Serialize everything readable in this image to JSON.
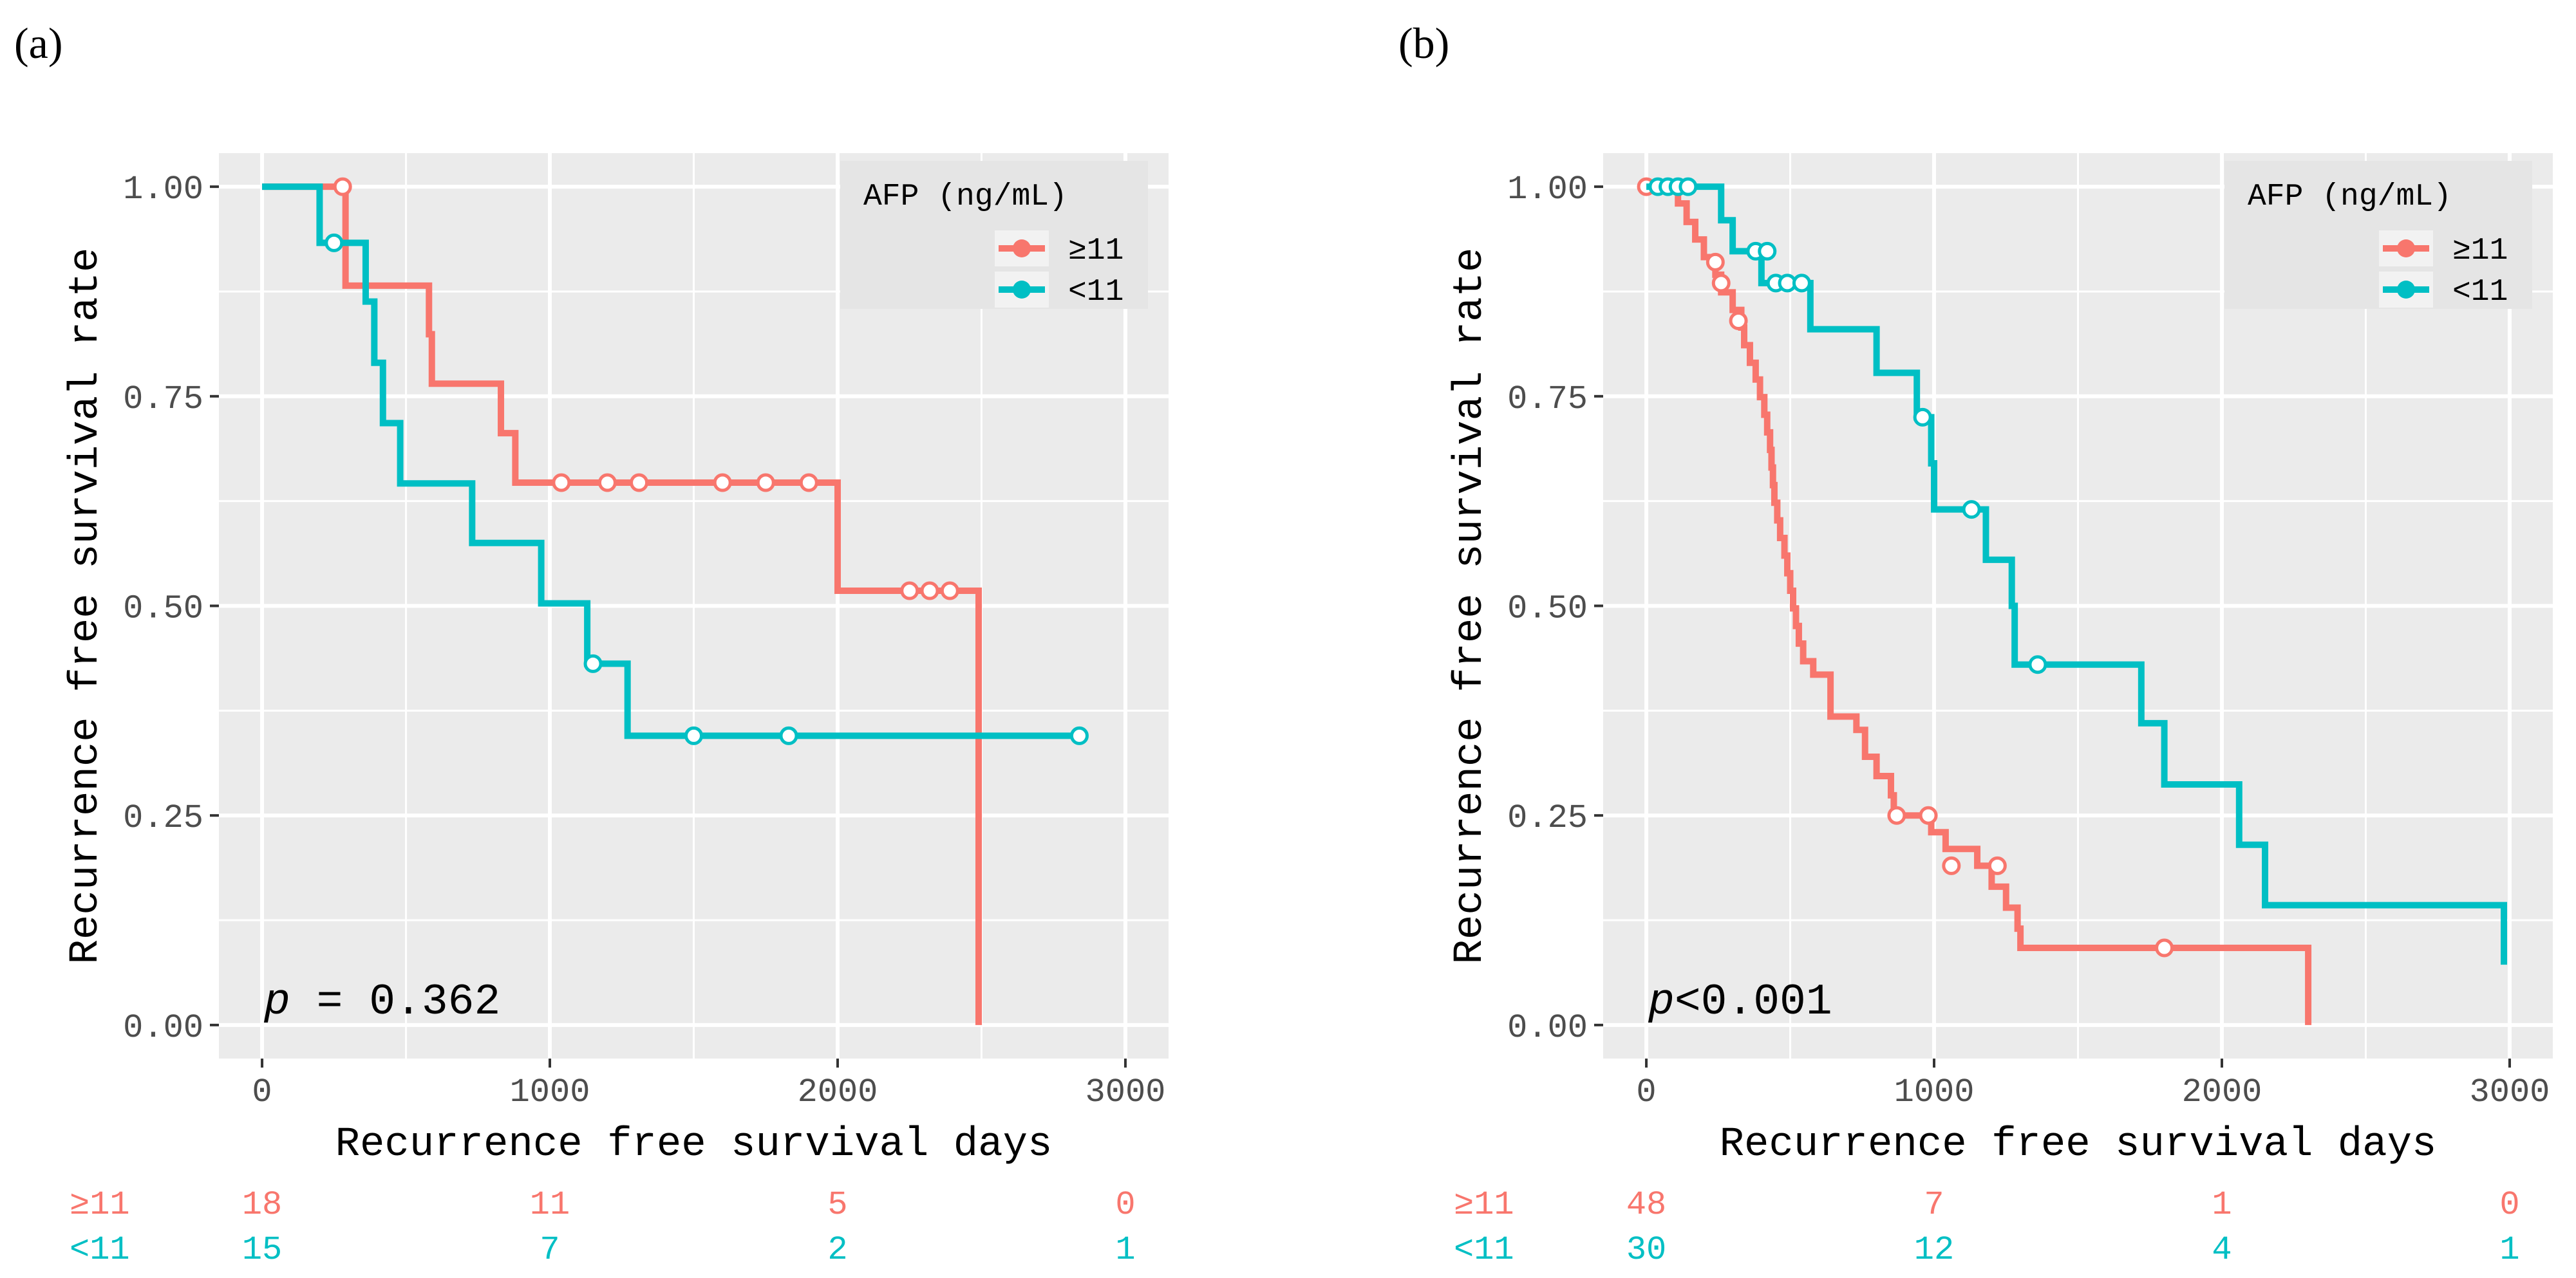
{
  "colors": {
    "high": "#f8766d",
    "low": "#00bfc4",
    "panel_bg": "#ebebeb",
    "grid": "#ffffff",
    "tick_text": "#4d4d4d",
    "tick_mark": "#333333"
  },
  "chart_data": [
    {
      "panel_label": "(a)",
      "type": "line",
      "subtype": "kaplan-meier step",
      "xlabel": "Recurrence free survival days",
      "ylabel": "Recurrence free survival rate",
      "xlim": [
        -150,
        3150
      ],
      "ylim": [
        -0.04,
        1.04
      ],
      "x_ticks": [
        0,
        1000,
        2000,
        3000
      ],
      "x_tick_labels": [
        "0",
        "1000",
        "2000",
        "3000"
      ],
      "y_ticks": [
        0,
        0.25,
        0.5,
        0.75,
        1.0
      ],
      "y_tick_labels": [
        "0.00",
        "0.25",
        "0.50",
        "0.75",
        "1.00"
      ],
      "legend_title": "AFP (ng/mL)",
      "legend_position": "top-right",
      "pvalue_prefix": "p",
      "pvalue_text": " = 0.362",
      "series": [
        {
          "name": "≥11",
          "color": "#f8766d",
          "steps": [
            [
              0,
              1.0
            ],
            [
              290,
              0.882
            ],
            [
              580,
              0.824
            ],
            [
              590,
              0.765
            ],
            [
              830,
              0.706
            ],
            [
              880,
              0.647
            ],
            [
              2000,
              0.518
            ],
            [
              2490,
              0.0
            ]
          ],
          "end_x": 2490,
          "censored": [
            [
              280,
              1.0
            ],
            [
              1040,
              0.647
            ],
            [
              1200,
              0.647
            ],
            [
              1310,
              0.647
            ],
            [
              1600,
              0.647
            ],
            [
              1750,
              0.647
            ],
            [
              1900,
              0.647
            ],
            [
              2250,
              0.518
            ],
            [
              2320,
              0.518
            ],
            [
              2390,
              0.518
            ]
          ]
        },
        {
          "name": "<11",
          "color": "#00bfc4",
          "steps": [
            [
              0,
              1.0
            ],
            [
              200,
              0.933
            ],
            [
              360,
              0.863
            ],
            [
              390,
              0.79
            ],
            [
              420,
              0.718
            ],
            [
              480,
              0.646
            ],
            [
              730,
              0.575
            ],
            [
              970,
              0.503
            ],
            [
              1130,
              0.431
            ],
            [
              1270,
              0.345
            ]
          ],
          "end_x": 2840,
          "censored": [
            [
              250,
              0.933
            ],
            [
              1150,
              0.431
            ],
            [
              1500,
              0.345
            ],
            [
              1830,
              0.345
            ],
            [
              2840,
              0.345
            ]
          ]
        }
      ],
      "risk_table": {
        "times": [
          0,
          1000,
          2000,
          3000
        ],
        "rows": [
          {
            "label": "≥11",
            "color": "#f8766d",
            "counts": [
              "18",
              "11",
              "5",
              "0"
            ]
          },
          {
            "label": "<11",
            "color": "#00bfc4",
            "counts": [
              "15",
              "7",
              "2",
              "1"
            ]
          }
        ]
      }
    },
    {
      "panel_label": "(b)",
      "type": "line",
      "subtype": "kaplan-meier step",
      "xlabel": "Recurrence free survival days",
      "ylabel": "Recurrence free survival rate",
      "xlim": [
        -150,
        3150
      ],
      "ylim": [
        -0.04,
        1.04
      ],
      "x_ticks": [
        0,
        1000,
        2000,
        3000
      ],
      "x_tick_labels": [
        "0",
        "1000",
        "2000",
        "3000"
      ],
      "y_ticks": [
        0,
        0.25,
        0.5,
        0.75,
        1.0
      ],
      "y_tick_labels": [
        "0.00",
        "0.25",
        "0.50",
        "0.75",
        "1.00"
      ],
      "legend_title": "AFP (ng/mL)",
      "legend_position": "top-right",
      "pvalue_prefix": "p",
      "pvalue_text": "<0.001",
      "series": [
        {
          "name": "≥11",
          "color": "#f8766d",
          "steps": [
            [
              0,
              1.0
            ],
            [
              110,
              0.98
            ],
            [
              140,
              0.958
            ],
            [
              170,
              0.937
            ],
            [
              200,
              0.916
            ],
            [
              240,
              0.895
            ],
            [
              260,
              0.874
            ],
            [
              300,
              0.853
            ],
            [
              330,
              0.832
            ],
            [
              340,
              0.811
            ],
            [
              360,
              0.79
            ],
            [
              380,
              0.77
            ],
            [
              395,
              0.749
            ],
            [
              410,
              0.728
            ],
            [
              420,
              0.707
            ],
            [
              430,
              0.686
            ],
            [
              435,
              0.665
            ],
            [
              440,
              0.644
            ],
            [
              445,
              0.623
            ],
            [
              455,
              0.602
            ],
            [
              465,
              0.581
            ],
            [
              480,
              0.56
            ],
            [
              490,
              0.539
            ],
            [
              500,
              0.518
            ],
            [
              510,
              0.497
            ],
            [
              520,
              0.476
            ],
            [
              530,
              0.455
            ],
            [
              545,
              0.434
            ],
            [
              580,
              0.418
            ],
            [
              640,
              0.368
            ],
            [
              730,
              0.352
            ],
            [
              760,
              0.32
            ],
            [
              800,
              0.297
            ],
            [
              850,
              0.274
            ],
            [
              860,
              0.25
            ],
            [
              990,
              0.23
            ],
            [
              1040,
              0.21
            ],
            [
              1150,
              0.19
            ],
            [
              1200,
              0.165
            ],
            [
              1250,
              0.14
            ],
            [
              1290,
              0.115
            ],
            [
              1300,
              0.092
            ],
            [
              2300,
              0.0
            ]
          ],
          "end_x": 2300,
          "censored": [
            [
              0,
              1.0
            ],
            [
              240,
              0.91
            ],
            [
              260,
              0.885
            ],
            [
              320,
              0.84
            ],
            [
              870,
              0.25
            ],
            [
              980,
              0.25
            ],
            [
              1060,
              0.19
            ],
            [
              1220,
              0.19
            ],
            [
              1800,
              0.092
            ]
          ]
        },
        {
          "name": "<11",
          "color": "#00bfc4",
          "steps": [
            [
              0,
              1.0
            ],
            [
              260,
              0.96
            ],
            [
              300,
              0.923
            ],
            [
              400,
              0.885
            ],
            [
              570,
              0.83
            ],
            [
              800,
              0.778
            ],
            [
              940,
              0.725
            ],
            [
              990,
              0.67
            ],
            [
              1000,
              0.615
            ],
            [
              1180,
              0.555
            ],
            [
              1270,
              0.5
            ],
            [
              1280,
              0.43
            ],
            [
              1720,
              0.36
            ],
            [
              1800,
              0.287
            ],
            [
              2060,
              0.215
            ],
            [
              2150,
              0.143
            ],
            [
              2980,
              0.072
            ]
          ],
          "end_x": 2980,
          "censored": [
            [
              40,
              1.0
            ],
            [
              75,
              1.0
            ],
            [
              110,
              1.0
            ],
            [
              145,
              1.0
            ],
            [
              380,
              0.923
            ],
            [
              420,
              0.923
            ],
            [
              450,
              0.885
            ],
            [
              490,
              0.885
            ],
            [
              540,
              0.885
            ],
            [
              960,
              0.725
            ],
            [
              1130,
              0.615
            ],
            [
              1360,
              0.43
            ]
          ]
        }
      ],
      "risk_table": {
        "times": [
          0,
          1000,
          2000,
          3000
        ],
        "rows": [
          {
            "label": "≥11",
            "color": "#f8766d",
            "counts": [
              "48",
              "7",
              "1",
              "0"
            ]
          },
          {
            "label": "<11",
            "color": "#00bfc4",
            "counts": [
              "30",
              "12",
              "4",
              "1"
            ]
          }
        ]
      }
    }
  ]
}
